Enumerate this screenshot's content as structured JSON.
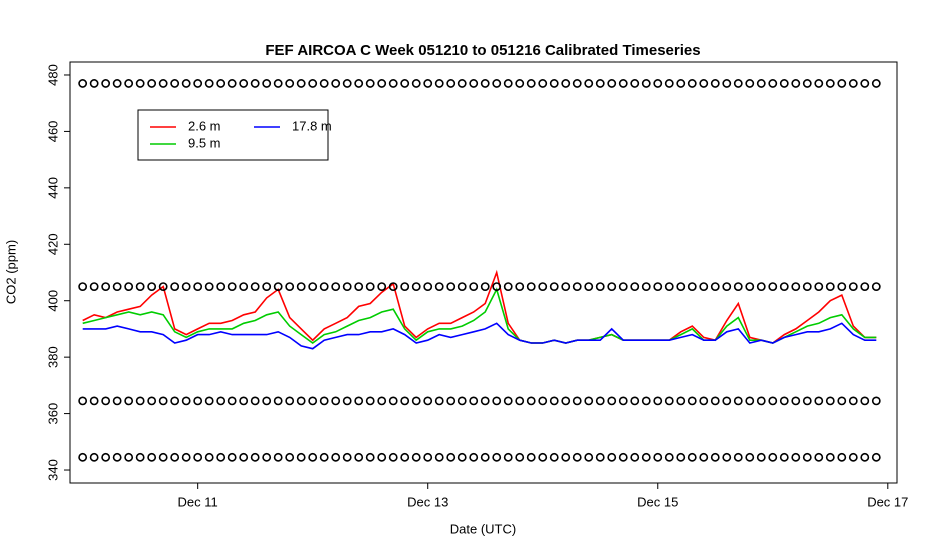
{
  "chart_data": {
    "type": "line",
    "title": "FEF AIRCOA C  Week 051210 to 051216  Calibrated Timeseries",
    "x_label": "Date (UTC)",
    "y_label": "CO2 (ppm)",
    "xlim": [
      -0.11,
      7.08
    ],
    "xticks": [
      {
        "value": 1,
        "label": "Dec 11"
      },
      {
        "value": 3,
        "label": "Dec 13"
      },
      {
        "value": 5,
        "label": "Dec 15"
      },
      {
        "value": 7,
        "label": "Dec 17"
      }
    ],
    "ylim": [
      335.4,
      484.6
    ],
    "yticks": [
      340,
      360,
      380,
      400,
      420,
      440,
      460,
      480
    ],
    "legend": "top-left",
    "x": [
      0,
      0.1,
      0.2,
      0.3,
      0.4,
      0.5,
      0.6,
      0.7,
      0.8,
      0.9,
      1,
      1.1,
      1.2,
      1.3,
      1.4,
      1.5,
      1.6,
      1.7,
      1.8,
      1.9,
      2,
      2.1,
      2.2,
      2.3,
      2.4,
      2.5,
      2.6,
      2.7,
      2.8,
      2.9,
      3,
      3.1,
      3.2,
      3.3,
      3.4,
      3.5,
      3.6,
      3.7,
      3.8,
      3.9,
      4,
      4.1,
      4.2,
      4.3,
      4.4,
      4.5,
      4.6,
      4.7,
      4.8,
      4.9,
      5,
      5.1,
      5.2,
      5.3,
      5.4,
      5.5,
      5.6,
      5.7,
      5.8,
      5.9,
      6,
      6.1,
      6.2,
      6.3,
      6.4,
      6.5,
      6.6,
      6.7,
      6.8,
      6.9
    ],
    "series": [
      {
        "name": "2.6 m",
        "color": "#ff0000",
        "values": [
          393,
          395,
          394,
          396,
          397,
          398,
          402,
          405,
          390,
          388,
          390,
          392,
          392,
          393,
          395,
          396,
          401,
          404,
          394,
          390,
          386,
          390,
          392,
          394,
          398,
          399,
          403,
          406,
          391,
          387,
          390,
          392,
          392,
          394,
          396,
          399,
          410,
          392,
          386,
          385,
          385,
          386,
          385,
          386,
          386,
          387,
          388,
          386,
          386,
          386,
          386,
          386,
          389,
          391,
          387,
          386,
          393,
          399,
          387,
          386,
          385,
          388,
          390,
          393,
          396,
          400,
          402,
          391,
          387,
          387
        ]
      },
      {
        "name": "9.5 m",
        "color": "#00cc00",
        "values": [
          392,
          393,
          394,
          395,
          396,
          395,
          396,
          395,
          389,
          387,
          389,
          390,
          390,
          390,
          392,
          393,
          395,
          396,
          391,
          388,
          385,
          388,
          389,
          391,
          393,
          394,
          396,
          397,
          390,
          386,
          389,
          390,
          390,
          391,
          393,
          396,
          404,
          390,
          386,
          385,
          385,
          386,
          385,
          386,
          386,
          387,
          388,
          386,
          386,
          386,
          386,
          386,
          388,
          390,
          386,
          386,
          391,
          394,
          386,
          386,
          385,
          387,
          389,
          391,
          392,
          394,
          395,
          390,
          387,
          387
        ]
      },
      {
        "name": "17.8 m",
        "color": "#0000ff",
        "values": [
          390,
          390,
          390,
          391,
          390,
          389,
          389,
          388,
          385,
          386,
          388,
          388,
          389,
          388,
          388,
          388,
          388,
          389,
          387,
          384,
          383,
          386,
          387,
          388,
          388,
          389,
          389,
          390,
          388,
          385,
          386,
          388,
          387,
          388,
          389,
          390,
          392,
          388,
          386,
          385,
          385,
          386,
          385,
          386,
          386,
          386,
          390,
          386,
          386,
          386,
          386,
          386,
          387,
          388,
          386,
          386,
          389,
          390,
          385,
          386,
          385,
          387,
          388,
          389,
          389,
          390,
          392,
          388,
          386,
          386
        ]
      }
    ],
    "markers": [
      {
        "color": "#000000",
        "values": [
          477,
          477,
          477,
          477,
          477,
          477,
          477,
          477,
          477,
          477,
          477,
          477,
          477,
          477,
          477,
          477,
          477,
          477,
          477,
          477,
          477,
          477,
          477,
          477,
          477,
          477,
          477,
          477,
          477,
          477,
          477,
          477,
          477,
          477,
          477,
          477,
          477,
          477,
          477,
          477,
          477,
          477,
          477,
          477,
          477,
          477,
          477,
          477,
          477,
          477,
          477,
          477,
          477,
          477,
          477,
          477,
          477,
          477,
          477,
          477,
          477,
          477,
          477,
          477,
          477,
          477,
          477,
          477,
          477,
          477
        ]
      },
      {
        "color": "#000000",
        "values": [
          405,
          405,
          405,
          405,
          405,
          405,
          405,
          405,
          405,
          405,
          405,
          405,
          405,
          405,
          405,
          405,
          405,
          405,
          405,
          405,
          405,
          405,
          405,
          405,
          405,
          405,
          405,
          405,
          405,
          405,
          405,
          405,
          405,
          405,
          405,
          405,
          405,
          405,
          405,
          405,
          405,
          405,
          405,
          405,
          405,
          405,
          405,
          405,
          405,
          405,
          405,
          405,
          405,
          405,
          405,
          405,
          405,
          405,
          405,
          405,
          405,
          405,
          405,
          405,
          405,
          405,
          405,
          405,
          405,
          405
        ]
      },
      {
        "color": "#000000",
        "values": [
          364.5,
          364.5,
          364.5,
          364.5,
          364.5,
          364.5,
          364.5,
          364.5,
          364.5,
          364.5,
          364.5,
          364.5,
          364.5,
          364.5,
          364.5,
          364.5,
          364.5,
          364.5,
          364.5,
          364.5,
          364.5,
          364.5,
          364.5,
          364.5,
          364.5,
          364.5,
          364.5,
          364.5,
          364.5,
          364.5,
          364.5,
          364.5,
          364.5,
          364.5,
          364.5,
          364.5,
          364.5,
          364.5,
          364.5,
          364.5,
          364.5,
          364.5,
          364.5,
          364.5,
          364.5,
          364.5,
          364.5,
          364.5,
          364.5,
          364.5,
          364.5,
          364.5,
          364.5,
          364.5,
          364.5,
          364.5,
          364.5,
          364.5,
          364.5,
          364.5,
          364.5,
          364.5,
          364.5,
          364.5,
          364.5,
          364.5,
          364.5,
          364.5,
          364.5,
          364.5
        ]
      },
      {
        "color": "#000000",
        "values": [
          344.5,
          344.5,
          344.5,
          344.5,
          344.5,
          344.5,
          344.5,
          344.5,
          344.5,
          344.5,
          344.5,
          344.5,
          344.5,
          344.5,
          344.5,
          344.5,
          344.5,
          344.5,
          344.5,
          344.5,
          344.5,
          344.5,
          344.5,
          344.5,
          344.5,
          344.5,
          344.5,
          344.5,
          344.5,
          344.5,
          344.5,
          344.5,
          344.5,
          344.5,
          344.5,
          344.5,
          344.5,
          344.5,
          344.5,
          344.5,
          344.5,
          344.5,
          344.5,
          344.5,
          344.5,
          344.5,
          344.5,
          344.5,
          344.5,
          344.5,
          344.5,
          344.5,
          344.5,
          344.5,
          344.5,
          344.5,
          344.5,
          344.5,
          344.5,
          344.5,
          344.5,
          344.5,
          344.5,
          344.5,
          344.5,
          344.5,
          344.5,
          344.5,
          344.5,
          344.5
        ]
      }
    ]
  }
}
